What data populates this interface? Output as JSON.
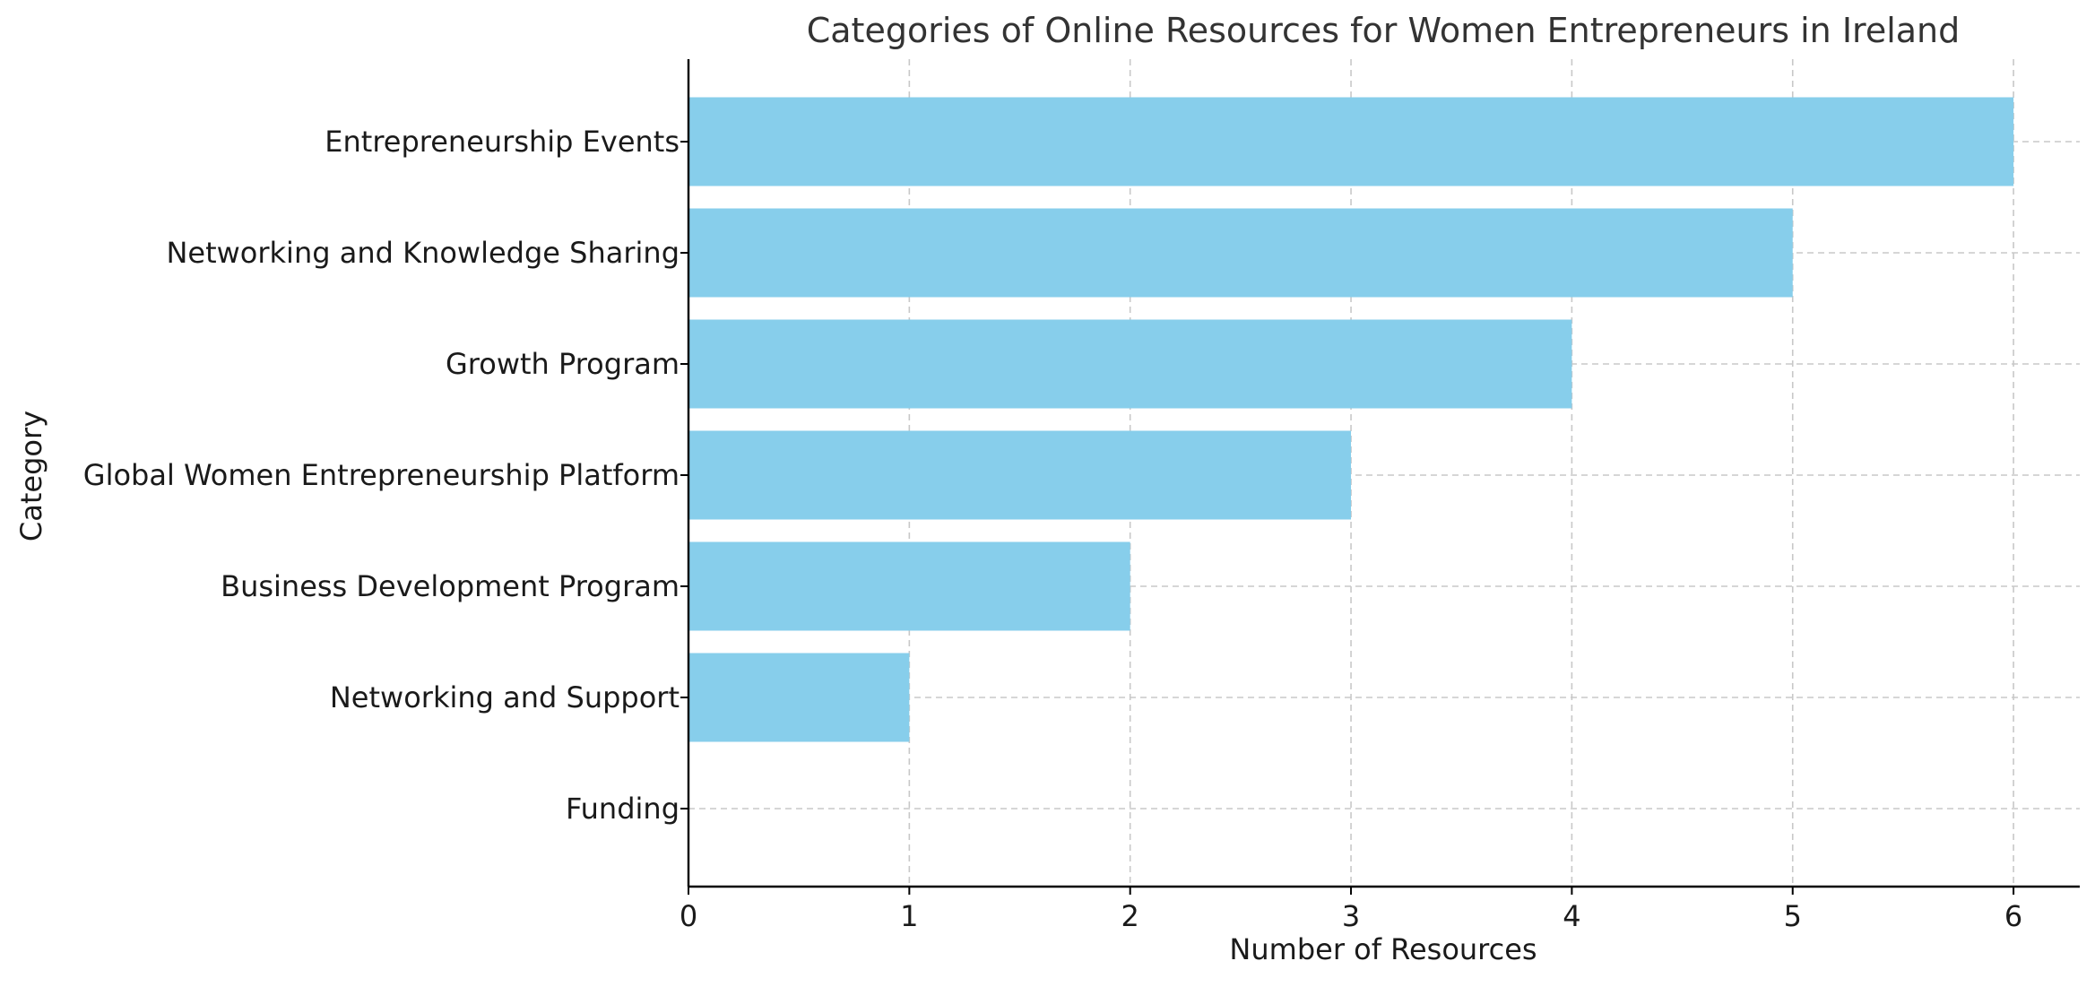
{
  "chart_data": {
    "type": "bar",
    "orientation": "horizontal",
    "title": "Categories of Online Resources for Women Entrepreneurs in Ireland",
    "xlabel": "Number of Resources",
    "ylabel": "Category",
    "categories": [
      "Entrepreneurship Events",
      "Networking and Knowledge Sharing",
      "Growth Program",
      "Global Women Entrepreneurship Platform",
      "Business Development Program",
      "Networking and Support",
      "Funding"
    ],
    "values": [
      6,
      5,
      4,
      3,
      2,
      1,
      0
    ],
    "xlim": [
      0,
      6.3
    ],
    "xticks": [
      "0",
      "1",
      "2",
      "3",
      "4",
      "5",
      "6"
    ],
    "bar_color": "#87CEEB",
    "grid": true,
    "grid_style": "dashed",
    "legend": false
  }
}
